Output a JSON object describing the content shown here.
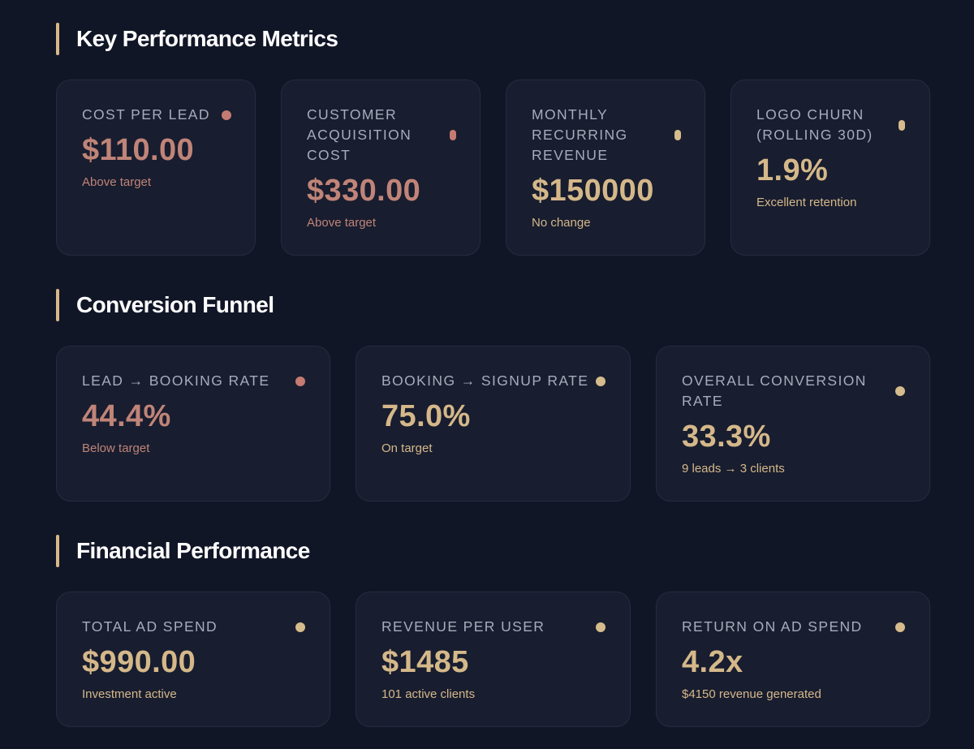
{
  "colors": {
    "accent": "#d9b886",
    "negative": "#c08478",
    "positive": "#d5b88a",
    "background": "#111627",
    "card": "#181d2f"
  },
  "sections": {
    "kpi": {
      "title": "Key Performance Metrics",
      "cards": [
        {
          "label": "COST PER LEAD",
          "value": "$110.00",
          "sub": "Above target",
          "status": "negative"
        },
        {
          "label": "CUSTOMER ACQUISITION COST",
          "value": "$330.00",
          "sub": "Above target",
          "status": "negative"
        },
        {
          "label": "MONTHLY RECURRING REVENUE",
          "value": "$150000",
          "sub": "No change",
          "status": "positive"
        },
        {
          "label": "LOGO CHURN (ROLLING 30D)",
          "value": "1.9%",
          "sub": "Excellent retention",
          "status": "positive"
        }
      ]
    },
    "funnel": {
      "title": "Conversion Funnel",
      "cards": [
        {
          "label": "LEAD → BOOKING RATE",
          "value": "44.4%",
          "sub": "Below target",
          "status": "negative"
        },
        {
          "label": "BOOKING → SIGNUP RATE",
          "value": "75.0%",
          "sub": "On target",
          "status": "positive"
        },
        {
          "label": "OVERALL CONVERSION RATE",
          "value": "33.3%",
          "sub": "9 leads → 3 clients",
          "status": "positive"
        }
      ]
    },
    "financial": {
      "title": "Financial Performance",
      "cards": [
        {
          "label": "TOTAL AD SPEND",
          "value": "$990.00",
          "sub": "Investment active",
          "status": "positive"
        },
        {
          "label": "REVENUE PER USER",
          "value": "$1485",
          "sub": "101 active clients",
          "status": "positive"
        },
        {
          "label": "RETURN ON AD SPEND",
          "value": "4.2x",
          "sub": "$4150 revenue generated",
          "status": "positive"
        }
      ]
    }
  }
}
